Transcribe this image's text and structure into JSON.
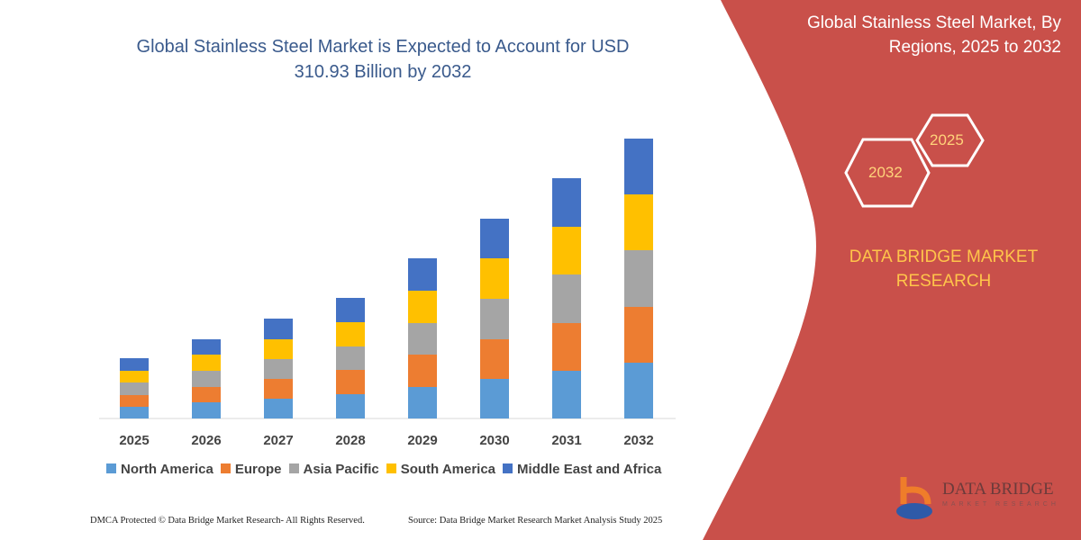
{
  "title": "Global Stainless Steel Market is Expected to Account for USD 310.93 Billion by 2032",
  "side_panel": {
    "title": "Global Stainless Steel Market, By Regions, 2025 to 2032",
    "hex_a": "2025",
    "hex_b": "2032",
    "brand": "DATA BRIDGE MARKET RESEARCH",
    "color": "#c9504a"
  },
  "logo": {
    "name": "DATA BRIDGE",
    "sub": "MARKET RESEARCH"
  },
  "footer": {
    "left": "DMCA Protected © Data Bridge Market Research-  All Rights Reserved.",
    "right": "Source: Data Bridge Market Research  Market Analysis Study 2025"
  },
  "chart_data": {
    "type": "bar",
    "stacked": true,
    "categories": [
      "2025",
      "2026",
      "2027",
      "2028",
      "2029",
      "2030",
      "2031",
      "2032"
    ],
    "series": [
      {
        "name": "North America",
        "color": "#5b9bd5",
        "values": [
          13,
          18,
          22,
          27,
          35,
          44,
          53,
          62
        ]
      },
      {
        "name": "Europe",
        "color": "#ed7d31",
        "values": [
          13,
          17,
          22,
          27,
          36,
          44,
          53,
          62
        ]
      },
      {
        "name": "Asia Pacific",
        "color": "#a5a5a5",
        "values": [
          14,
          18,
          22,
          26,
          35,
          45,
          54,
          63
        ]
      },
      {
        "name": "South America",
        "color": "#ffc000",
        "values": [
          13,
          18,
          22,
          27,
          36,
          45,
          53,
          62
        ]
      },
      {
        "name": "Middle East and Africa",
        "color": "#4472c4",
        "values": [
          14,
          17,
          23,
          27,
          36,
          44,
          54,
          62
        ]
      }
    ],
    "legend": "bottom",
    "grid": false
  }
}
